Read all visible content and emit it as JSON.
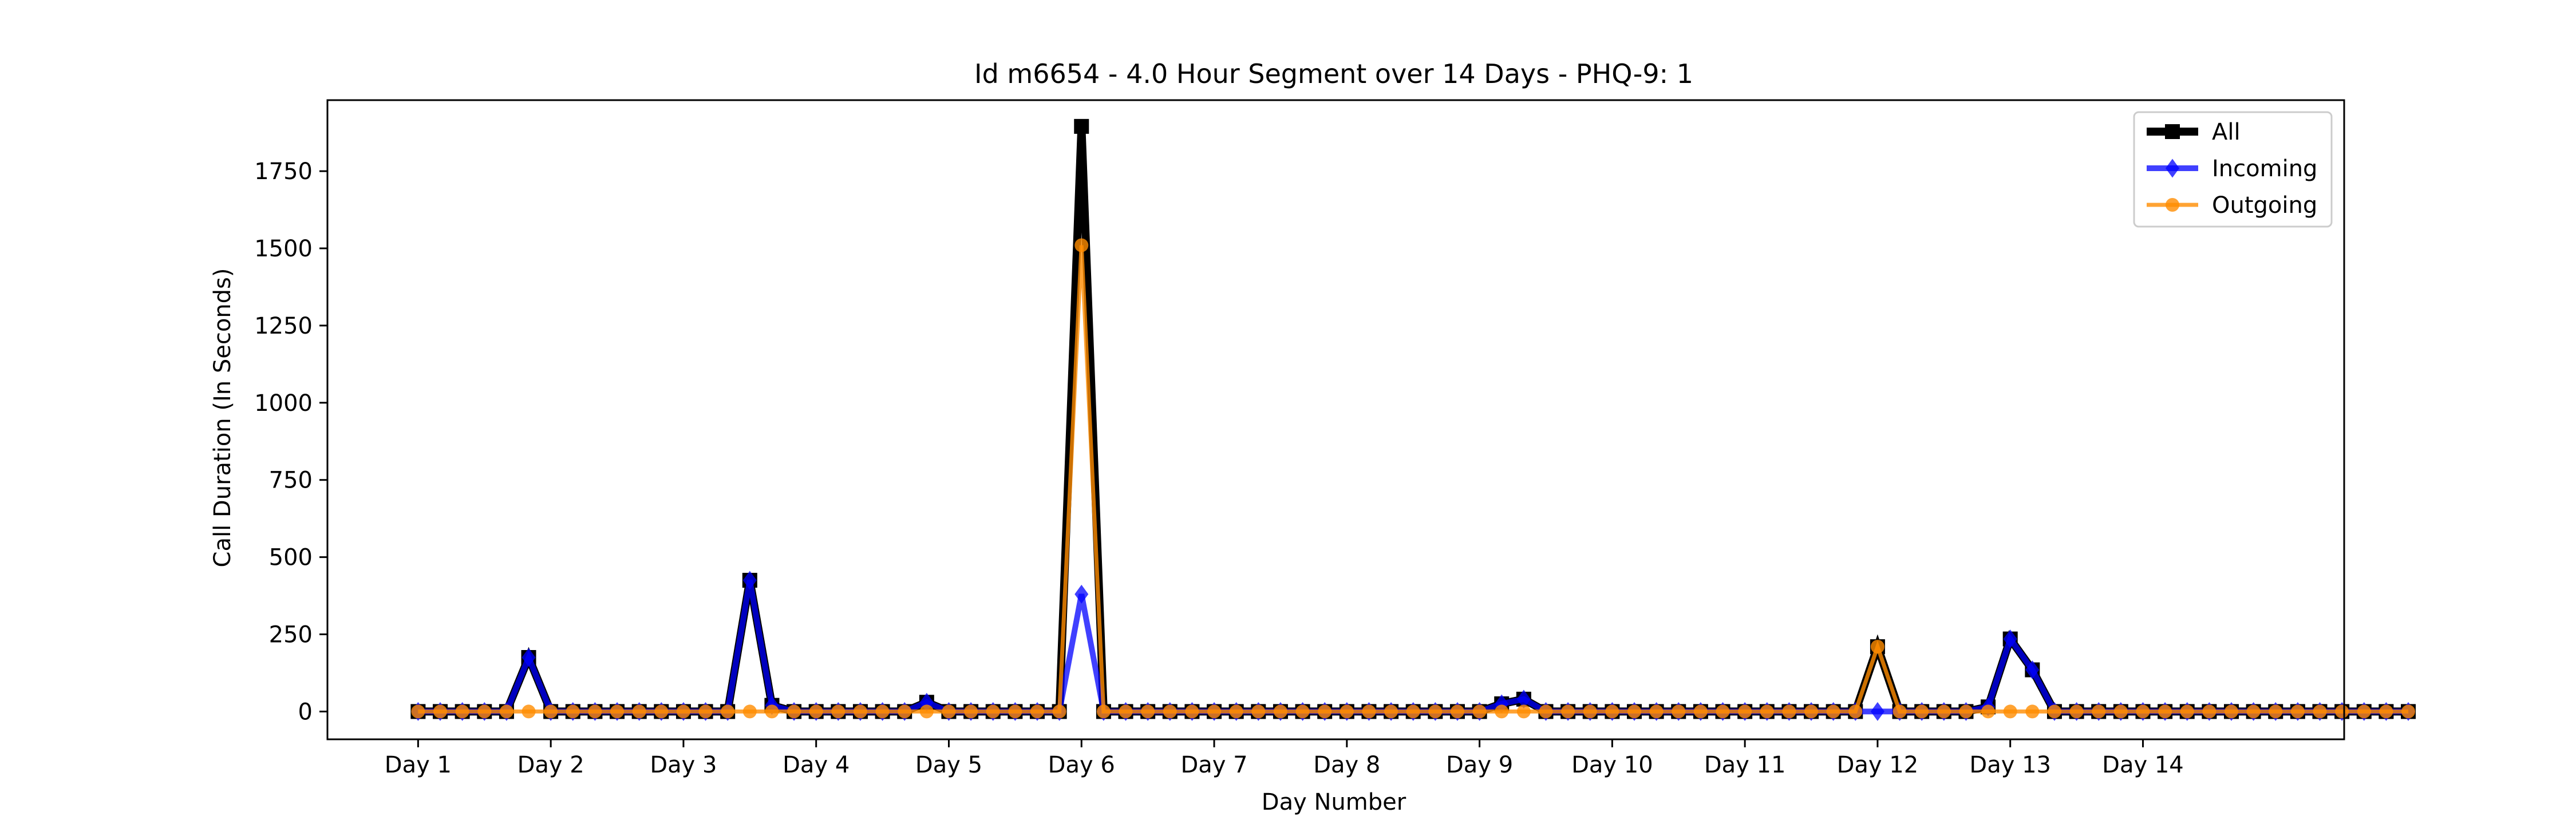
{
  "chart_data": {
    "type": "line",
    "title": "Id m6654 - 4.0 Hour Segment over 14 Days - PHQ-9: 1",
    "xlabel": "Day Number",
    "ylabel": "Call Duration (In Seconds)",
    "ylim": [
      -90,
      1980
    ],
    "xlim": [
      -4.1,
      87.1
    ],
    "grid": false,
    "legend_position": "top-right",
    "yticks": [
      0,
      250,
      500,
      750,
      1000,
      1250,
      1500,
      1750
    ],
    "xticks": [
      {
        "x": 0,
        "label": "Day 1"
      },
      {
        "x": 6,
        "label": "Day 2"
      },
      {
        "x": 12,
        "label": "Day 3"
      },
      {
        "x": 18,
        "label": "Day 4"
      },
      {
        "x": 24,
        "label": "Day 5"
      },
      {
        "x": 30,
        "label": "Day 6"
      },
      {
        "x": 36,
        "label": "Day 7"
      },
      {
        "x": 42,
        "label": "Day 8"
      },
      {
        "x": 48,
        "label": "Day 9"
      },
      {
        "x": 54,
        "label": "Day 10"
      },
      {
        "x": 60,
        "label": "Day 11"
      },
      {
        "x": 66,
        "label": "Day 12"
      },
      {
        "x": 72,
        "label": "Day 13"
      },
      {
        "x": 78,
        "label": "Day 14"
      }
    ],
    "series": [
      {
        "name": "All",
        "color": "#000000",
        "marker": "square",
        "values": [
          0,
          0,
          0,
          0,
          0,
          175,
          0,
          0,
          0,
          0,
          0,
          0,
          0,
          0,
          0,
          425,
          20,
          0,
          0,
          0,
          0,
          0,
          0,
          30,
          0,
          0,
          0,
          0,
          0,
          0,
          1895,
          0,
          0,
          0,
          0,
          0,
          0,
          0,
          0,
          0,
          0,
          0,
          0,
          0,
          0,
          0,
          0,
          0,
          0,
          25,
          40,
          0,
          0,
          0,
          0,
          0,
          0,
          0,
          0,
          0,
          0,
          0,
          0,
          0,
          0,
          0,
          210,
          0,
          0,
          0,
          0,
          15,
          235,
          135,
          0,
          0,
          0,
          0,
          0,
          0,
          0,
          0,
          0,
          0,
          0,
          0,
          0,
          0,
          0,
          0,
          0
        ]
      },
      {
        "name": "Incoming",
        "color": "#0000ff",
        "marker": "diamond",
        "values": [
          0,
          0,
          0,
          0,
          0,
          175,
          0,
          0,
          0,
          0,
          0,
          0,
          0,
          0,
          0,
          425,
          20,
          0,
          0,
          0,
          0,
          0,
          0,
          30,
          0,
          0,
          0,
          0,
          0,
          0,
          380,
          0,
          0,
          0,
          0,
          0,
          0,
          0,
          0,
          0,
          0,
          0,
          0,
          0,
          0,
          0,
          0,
          0,
          0,
          25,
          40,
          0,
          0,
          0,
          0,
          0,
          0,
          0,
          0,
          0,
          0,
          0,
          0,
          0,
          0,
          0,
          0,
          0,
          0,
          0,
          0,
          15,
          235,
          135,
          0,
          0,
          0,
          0,
          0,
          0,
          0,
          0,
          0,
          0,
          0,
          0,
          0,
          0,
          0,
          0,
          0
        ]
      },
      {
        "name": "Outgoing",
        "color": "#ff8c00",
        "marker": "circle",
        "values": [
          0,
          0,
          0,
          0,
          0,
          0,
          0,
          0,
          0,
          0,
          0,
          0,
          0,
          0,
          0,
          0,
          0,
          0,
          0,
          0,
          0,
          0,
          0,
          0,
          0,
          0,
          0,
          0,
          0,
          0,
          1510,
          0,
          0,
          0,
          0,
          0,
          0,
          0,
          0,
          0,
          0,
          0,
          0,
          0,
          0,
          0,
          0,
          0,
          0,
          0,
          0,
          0,
          0,
          0,
          0,
          0,
          0,
          0,
          0,
          0,
          0,
          0,
          0,
          0,
          0,
          0,
          210,
          0,
          0,
          0,
          0,
          0,
          0,
          0,
          0,
          0,
          0,
          0,
          0,
          0,
          0,
          0,
          0,
          0,
          0,
          0,
          0,
          0,
          0,
          0,
          0
        ]
      }
    ]
  }
}
